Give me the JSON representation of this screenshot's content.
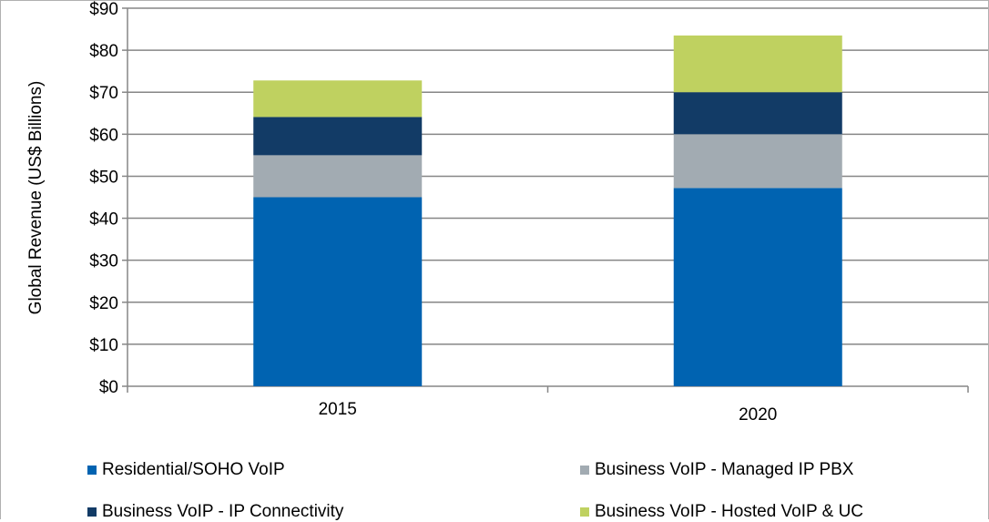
{
  "chart_data": {
    "type": "bar",
    "stacked": true,
    "title": "",
    "xlabel": "",
    "ylabel": "Global Revenue (US$ Billions)",
    "ylim": [
      0,
      90
    ],
    "yticks": [
      "$0",
      "$10",
      "$20",
      "$30",
      "$40",
      "$50",
      "$60",
      "$70",
      "$80",
      "$90"
    ],
    "grid": true,
    "legend_position": "bottom",
    "categories": [
      "2015",
      "2020"
    ],
    "series": [
      {
        "name": "Residential/SOHO VoIP",
        "color": "#0063b1",
        "values": [
          45.0,
          47.2
        ]
      },
      {
        "name": "Business VoIP - Managed IP PBX",
        "color": "#a2abb2",
        "values": [
          10.0,
          12.8
        ]
      },
      {
        "name": "Business VoIP - IP Connectivity",
        "color": "#123b66",
        "values": [
          9.1,
          10.0
        ]
      },
      {
        "name": "Business VoIP - Hosted VoIP & UC",
        "color": "#bfd160",
        "values": [
          8.7,
          13.5
        ]
      }
    ]
  }
}
